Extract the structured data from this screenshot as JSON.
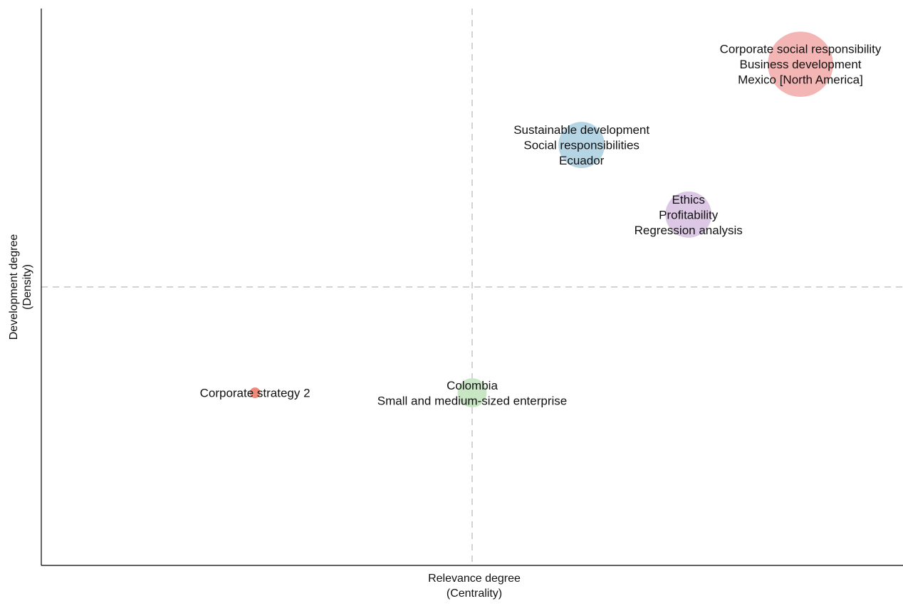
{
  "chart_data": {
    "type": "scatter",
    "subtype": "bubble (strategic diagram)",
    "title": "",
    "xlabel": [
      "Relevance degree",
      "(Centrality)"
    ],
    "ylabel": [
      "Development degree",
      "(Density)"
    ],
    "xlim": [
      0,
      1
    ],
    "ylim": [
      0,
      1
    ],
    "x_ticks": "none",
    "y_ticks": "none",
    "median_lines": {
      "x": 0.5,
      "y": 0.5,
      "style": "dashed",
      "color": "#d3d3d3"
    },
    "grid": false,
    "legend": "none",
    "points": [
      {
        "labels": [
          "Corporate social responsibility",
          "Business development",
          "Mexico [North America]"
        ],
        "x": 0.881,
        "y": 0.9,
        "size": 10,
        "color": "#f4b5b5"
      },
      {
        "labels": [
          "Sustainable development",
          "Social responsibilities",
          "Ecuador"
        ],
        "x": 0.627,
        "y": 0.755,
        "size": 5,
        "color": "#b5d4e4"
      },
      {
        "labels": [
          "Ethics",
          "Profitability",
          "Regression analysis"
        ],
        "x": 0.751,
        "y": 0.63,
        "size": 5,
        "color": "#dcc8e4"
      },
      {
        "labels": [
          "Colombia",
          "Small and medium-sized enterprise"
        ],
        "x": 0.5,
        "y": 0.31,
        "size": 2,
        "color": "#c8e6c4"
      },
      {
        "labels": [
          "Corporate strategy 2"
        ],
        "x": 0.248,
        "y": 0.31,
        "size": 0.2,
        "color": "#ee8a7a"
      }
    ]
  }
}
